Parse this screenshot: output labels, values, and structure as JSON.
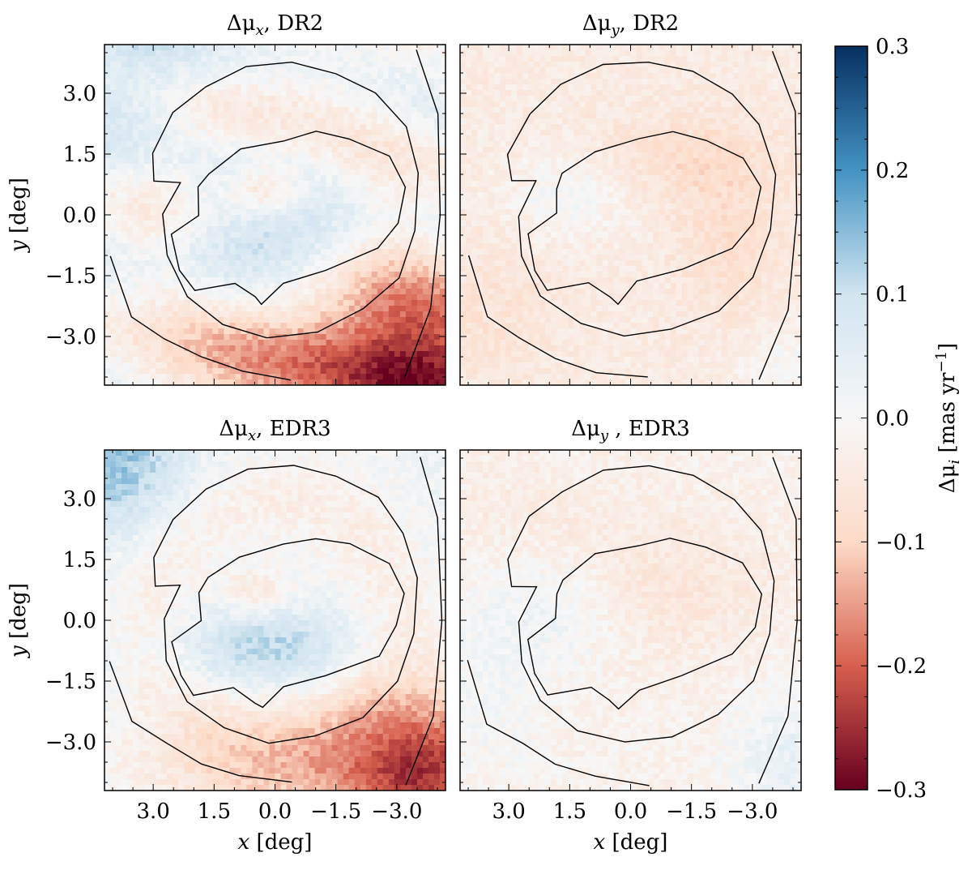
{
  "chart_data": {
    "type": "heatmap",
    "x_range": [
      4.2,
      -4.2
    ],
    "y_range": [
      -4.2,
      4.2
    ],
    "xlabel_sym": "x",
    "ylabel_sym": "y",
    "unit_label": "[deg]",
    "xticks": [
      3.0,
      1.5,
      0.0,
      -1.5,
      -3.0
    ],
    "yticks": [
      3.0,
      1.5,
      0.0,
      -1.5,
      -3.0
    ],
    "xtick_labels": [
      "3.0",
      "1.5",
      "0.0",
      "−1.5",
      "−3.0"
    ],
    "ytick_labels": [
      "3.0",
      "1.5",
      "0.0",
      "−1.5",
      "−3.0"
    ],
    "panels": [
      {
        "id": "mux-dr2",
        "delta": "Δμ",
        "sub": "x",
        "title_suffix": ", DR2"
      },
      {
        "id": "muy-dr2",
        "delta": "Δμ",
        "sub": "y",
        "title_suffix": ", DR2"
      },
      {
        "id": "mux-edr3",
        "delta": "Δμ",
        "sub": "x",
        "title_suffix": ", EDR3"
      },
      {
        "id": "muy-edr3",
        "delta": "Δμ",
        "sub": "y",
        "title_suffix": " , EDR3"
      }
    ],
    "colorbar": {
      "label_delta": "Δμ",
      "label_sub": "i",
      "label_unit": " [mas yr",
      "label_exp": "−1",
      "label_close": "]",
      "range": [
        -0.3,
        0.3
      ],
      "ticks": [
        0.3,
        0.2,
        0.1,
        0.0,
        -0.1,
        -0.2,
        -0.3
      ],
      "tick_labels": [
        "0.3",
        "0.2",
        "0.1",
        "0.0",
        "−0.1",
        "−0.2",
        "−0.3"
      ],
      "colormap": "RdBu",
      "color_stops": [
        "#67001f",
        "#d6604d",
        "#fddbc7",
        "#f7f7f7",
        "#d1e5f0",
        "#4393c3",
        "#053061"
      ]
    },
    "contour_levels": 3
  }
}
